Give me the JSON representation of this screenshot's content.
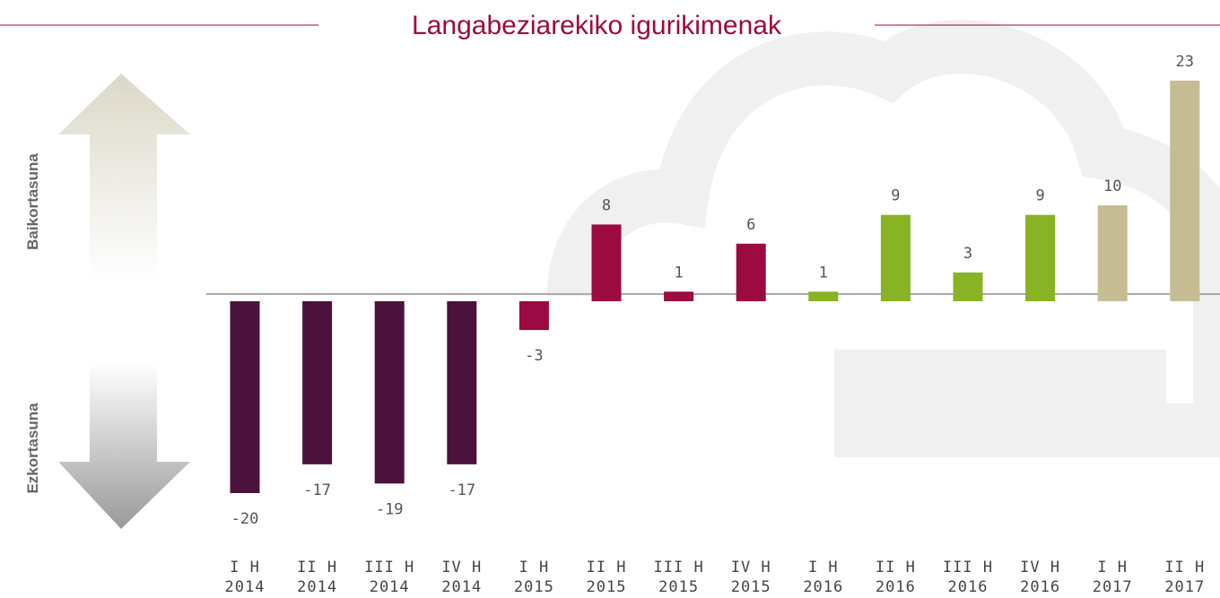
{
  "chart_data": {
    "type": "bar",
    "title": "Langabeziarekiko igurikimenak",
    "positive_label": "Baikortasuna",
    "negative_label": "Ezkortasuna",
    "categories": [
      "I H 2014",
      "II H 2014",
      "III H 2014",
      "IV H 2014",
      "I H 2015",
      "II H 2015",
      "III H 2015",
      "IV H 2015",
      "I H 2016",
      "II H 2016",
      "III H 2016",
      "IV H 2016",
      "I H 2017",
      "II H 2017"
    ],
    "values": [
      -20,
      -17,
      -19,
      -17,
      -3,
      8,
      1,
      6,
      1,
      9,
      3,
      9,
      10,
      23
    ],
    "colors": [
      "#4b133b",
      "#4b133b",
      "#4b133b",
      "#4b133b",
      "#9b0a40",
      "#9b0a40",
      "#9b0a40",
      "#9b0a40",
      "#87b324",
      "#87b324",
      "#87b324",
      "#87b324",
      "#c6bc94",
      "#c6bc94"
    ]
  }
}
